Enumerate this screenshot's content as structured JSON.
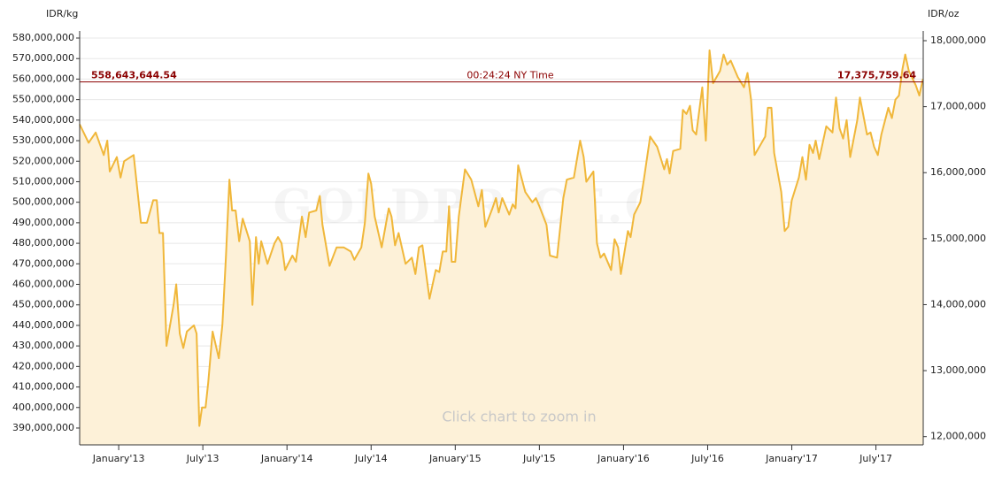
{
  "chart_data": {
    "type": "area",
    "y_label": "IDR/kg",
    "y2_label": "IDR/oz",
    "watermark": "GOLDPRICE.ORG",
    "note": "Click chart to zoom in",
    "grid": true,
    "xlim": [
      2012.768,
      2017.781
    ],
    "xticks": [
      {
        "value": 2013,
        "label": "January'13"
      },
      {
        "value": 2013.5,
        "label": "July'13"
      },
      {
        "value": 2014,
        "label": "January'14"
      },
      {
        "value": 2014.5,
        "label": "July'14"
      },
      {
        "value": 2015,
        "label": "January'15"
      },
      {
        "value": 2015.5,
        "label": "July'15"
      },
      {
        "value": 2016,
        "label": "January'16"
      },
      {
        "value": 2016.5,
        "label": "July'16"
      },
      {
        "value": 2017,
        "label": "January'17"
      },
      {
        "value": 2017.5,
        "label": "July'17"
      }
    ],
    "ylim": [
      381800000,
      583450000
    ],
    "yticks": [
      {
        "value": 390000000,
        "label": "390,000,000"
      },
      {
        "value": 400000000,
        "label": "400,000,000"
      },
      {
        "value": 410000000,
        "label": "410,000,000"
      },
      {
        "value": 420000000,
        "label": "420,000,000"
      },
      {
        "value": 430000000,
        "label": "430,000,000"
      },
      {
        "value": 440000000,
        "label": "440,000,000"
      },
      {
        "value": 450000000,
        "label": "450,000,000"
      },
      {
        "value": 460000000,
        "label": "460,000,000"
      },
      {
        "value": 470000000,
        "label": "470,000,000"
      },
      {
        "value": 480000000,
        "label": "480,000,000"
      },
      {
        "value": 490000000,
        "label": "490,000,000"
      },
      {
        "value": 500000000,
        "label": "500,000,000"
      },
      {
        "value": 510000000,
        "label": "510,000,000"
      },
      {
        "value": 520000000,
        "label": "520,000,000"
      },
      {
        "value": 530000000,
        "label": "530,000,000"
      },
      {
        "value": 540000000,
        "label": "540,000,000"
      },
      {
        "value": 550000000,
        "label": "550,000,000"
      },
      {
        "value": 560000000,
        "label": "560,000,000"
      },
      {
        "value": 570000000,
        "label": "570,000,000"
      },
      {
        "value": 580000000,
        "label": "580,000,000"
      }
    ],
    "y2lim": [
      11875300,
      18147300
    ],
    "y2ticks": [
      {
        "value": 12000000,
        "label": "12,000,000"
      },
      {
        "value": 13000000,
        "label": "13,000,000"
      },
      {
        "value": 14000000,
        "label": "14,000,000"
      },
      {
        "value": 15000000,
        "label": "15,000,000"
      },
      {
        "value": 16000000,
        "label": "16,000,000"
      },
      {
        "value": 17000000,
        "label": "17,000,000"
      },
      {
        "value": 18000000,
        "label": "18,000,000"
      }
    ],
    "price_line": {
      "value": 558643644.54,
      "label": "558,643,644.54",
      "y2_value": 17375759.64,
      "y2_label": "17,375,759.64",
      "time": "00:24:24 NY Time",
      "color": "#8b0000"
    },
    "color": "#f0b73a",
    "fill": "#fdf1d8",
    "x": [
      2012.768,
      2012.821,
      2012.863,
      2012.911,
      2012.932,
      2012.947,
      2012.989,
      2013.011,
      2013.032,
      2013.089,
      2013.132,
      2013.168,
      2013.205,
      2013.226,
      2013.242,
      2013.263,
      2013.284,
      2013.326,
      2013.342,
      2013.363,
      2013.384,
      2013.405,
      2013.447,
      2013.463,
      2013.479,
      2013.495,
      2013.516,
      2013.532,
      2013.558,
      2013.595,
      2013.616,
      2013.637,
      2013.658,
      2013.674,
      2013.695,
      2013.716,
      2013.737,
      2013.779,
      2013.795,
      2013.816,
      2013.832,
      2013.847,
      2013.884,
      2013.926,
      2013.947,
      2013.968,
      2013.989,
      2014.032,
      2014.053,
      2014.089,
      2014.111,
      2014.132,
      2014.174,
      2014.195,
      2014.211,
      2014.253,
      2014.295,
      2014.337,
      2014.379,
      2014.4,
      2014.442,
      2014.463,
      2014.484,
      2014.5,
      2014.521,
      2014.563,
      2014.605,
      2014.621,
      2014.642,
      2014.663,
      2014.705,
      2014.742,
      2014.763,
      2014.784,
      2014.805,
      2014.847,
      2014.884,
      2014.905,
      2014.926,
      2014.947,
      2014.963,
      2014.979,
      2015.0,
      2015.021,
      2015.058,
      2015.095,
      2015.137,
      2015.158,
      2015.179,
      2015.221,
      2015.242,
      2015.258,
      2015.279,
      2015.321,
      2015.342,
      2015.358,
      2015.374,
      2015.416,
      2015.458,
      2015.479,
      2015.5,
      2015.542,
      2015.563,
      2015.605,
      2015.642,
      2015.663,
      2015.705,
      2015.742,
      2015.763,
      2015.779,
      2015.821,
      2015.842,
      2015.863,
      2015.884,
      2015.926,
      2015.947,
      2015.968,
      2015.984,
      2016.026,
      2016.042,
      2016.063,
      2016.1,
      2016.121,
      2016.158,
      2016.2,
      2016.242,
      2016.258,
      2016.274,
      2016.295,
      2016.337,
      2016.353,
      2016.374,
      2016.395,
      2016.411,
      2016.432,
      2016.468,
      2016.489,
      2016.511,
      2016.532,
      2016.574,
      2016.595,
      2016.616,
      2016.637,
      2016.679,
      2016.716,
      2016.737,
      2016.758,
      2016.779,
      2016.821,
      2016.842,
      2016.858,
      2016.879,
      2016.895,
      2016.937,
      2016.958,
      2016.979,
      2017.0,
      2017.042,
      2017.063,
      2017.084,
      2017.105,
      2017.126,
      2017.142,
      2017.163,
      2017.205,
      2017.242,
      2017.263,
      2017.284,
      2017.305,
      2017.326,
      2017.347,
      2017.389,
      2017.405,
      2017.447,
      2017.468,
      2017.489,
      2017.511,
      2017.532,
      2017.574,
      2017.595,
      2017.616,
      2017.637,
      2017.658,
      2017.674,
      2017.695,
      2017.737,
      2017.758,
      2017.779
    ],
    "values": [
      538000000,
      529000000,
      534000000,
      523000000,
      530000000,
      515000000,
      522000000,
      512000000,
      520000000,
      523000000,
      490000000,
      490000000,
      501000000,
      501000000,
      485000000,
      485000000,
      430000000,
      450000000,
      460000000,
      436000000,
      429000000,
      437000000,
      440000000,
      436000000,
      391000000,
      400000000,
      400000000,
      412000000,
      437000000,
      424000000,
      440000000,
      473000000,
      511000000,
      496000000,
      496000000,
      481000000,
      492000000,
      481000000,
      450000000,
      483000000,
      470000000,
      481000000,
      470000000,
      480000000,
      483000000,
      480000000,
      467000000,
      474000000,
      471000000,
      493000000,
      483000000,
      495000000,
      496000000,
      503000000,
      489000000,
      469000000,
      478000000,
      478000000,
      476000000,
      472000000,
      478000000,
      490000000,
      514000000,
      509000000,
      493000000,
      478000000,
      497000000,
      493000000,
      479000000,
      485000000,
      470000000,
      473000000,
      465000000,
      478000000,
      479000000,
      453000000,
      467000000,
      466000000,
      476000000,
      476000000,
      498000000,
      471000000,
      471000000,
      493000000,
      516000000,
      511000000,
      498000000,
      506000000,
      488000000,
      497000000,
      502000000,
      495000000,
      502000000,
      494000000,
      499000000,
      497000000,
      518000000,
      505000000,
      500000000,
      502000000,
      498000000,
      489000000,
      474000000,
      473000000,
      502000000,
      511000000,
      512000000,
      530000000,
      522000000,
      510000000,
      515000000,
      480000000,
      473000000,
      475000000,
      467000000,
      482000000,
      478000000,
      465000000,
      486000000,
      483000000,
      494000000,
      500000000,
      511000000,
      532000000,
      527000000,
      516000000,
      521000000,
      514000000,
      525000000,
      526000000,
      545000000,
      543000000,
      547000000,
      535000000,
      533000000,
      556000000,
      530000000,
      574000000,
      558000000,
      564000000,
      572000000,
      567000000,
      569000000,
      561000000,
      556000000,
      563000000,
      550000000,
      523000000,
      529000000,
      532000000,
      546000000,
      546000000,
      524000000,
      505000000,
      486000000,
      488000000,
      501000000,
      512000000,
      522000000,
      511000000,
      528000000,
      524000000,
      530000000,
      521000000,
      537000000,
      534000000,
      551000000,
      536000000,
      531000000,
      540000000,
      522000000,
      540000000,
      551000000,
      533000000,
      534000000,
      527000000,
      523000000,
      533000000,
      546000000,
      541000000,
      550000000,
      552000000,
      565000000,
      572000000,
      564000000,
      557000000,
      552000000,
      560000000
    ]
  }
}
